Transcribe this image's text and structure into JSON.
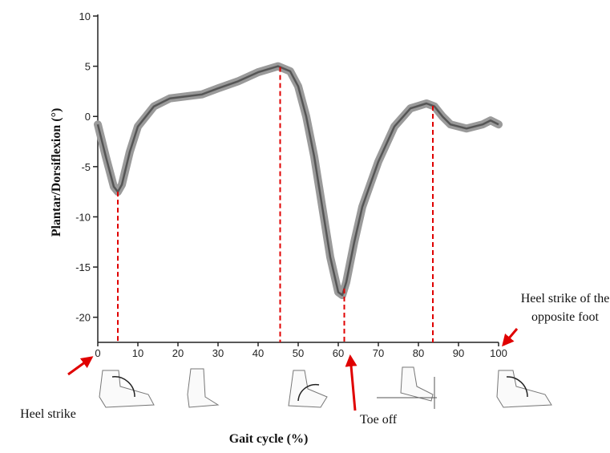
{
  "chart_data": {
    "type": "line",
    "x_label": "Gait cycle (%)",
    "y_label": "Plantar/Dorsiflexion  (°)",
    "x": [
      0,
      2,
      4,
      5,
      6,
      8,
      10,
      14,
      18,
      22,
      26,
      30,
      35,
      40,
      45,
      48,
      50,
      52,
      54,
      56,
      58,
      60,
      61,
      62,
      64,
      66,
      70,
      74,
      78,
      82,
      84,
      86,
      88,
      92,
      96,
      98,
      100
    ],
    "series": [
      {
        "color": "#555555",
        "values": [
          -0.8,
          -4,
          -7,
          -7.5,
          -6.8,
          -3.5,
          -1,
          1,
          1.8,
          2,
          2.2,
          2.8,
          3.5,
          4.4,
          5,
          4.5,
          3,
          0,
          -4,
          -9,
          -14,
          -17.5,
          -17.8,
          -16.5,
          -12.5,
          -9,
          -4.5,
          -1,
          0.8,
          1.3,
          1,
          0,
          -0.8,
          -1.2,
          -0.8,
          -0.4,
          -0.8
        ]
      }
    ],
    "xlim": [
      0,
      100
    ],
    "xticks": [
      0,
      10,
      20,
      30,
      40,
      50,
      60,
      70,
      80,
      90,
      100
    ],
    "ylim": [
      -22.5,
      10
    ],
    "yticks": [
      -20,
      -15,
      -10,
      -5,
      0,
      5,
      10
    ],
    "vlines": [
      5,
      45.5,
      61.5,
      83.6
    ],
    "vline_color": "#e00000",
    "annotations": [
      {
        "lines": [
          "Heel strike"
        ]
      },
      {
        "lines": [
          "Toe off"
        ]
      },
      {
        "lines": [
          "Heel strike of the",
          "opposite foot"
        ]
      }
    ]
  }
}
